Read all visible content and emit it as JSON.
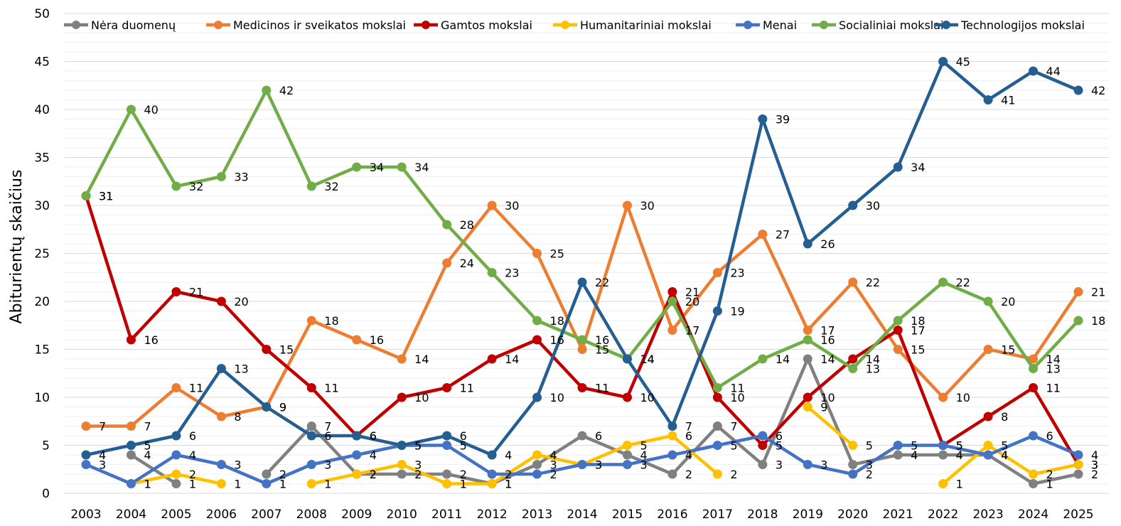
{
  "chart_data": {
    "type": "line",
    "title": "",
    "xlabel": "",
    "ylabel": "Abiturientų skaičius",
    "ylim": [
      0,
      50
    ],
    "y_ticks": [
      0,
      5,
      10,
      15,
      20,
      25,
      30,
      35,
      40,
      45,
      50
    ],
    "grid": true,
    "legend_position": "top",
    "data_labels": true,
    "x": [
      "2003",
      "2004",
      "2005",
      "2006",
      "2007",
      "2008",
      "2009",
      "2010",
      "2011",
      "2012",
      "2013",
      "2014",
      "2015",
      "2016",
      "2017",
      "2018",
      "2019",
      "2020",
      "2021",
      "2022",
      "2023",
      "2024",
      "2025"
    ],
    "series": [
      {
        "name": "Nėra duomenų",
        "color": "#808080",
        "values": [
          null,
          4,
          1,
          null,
          2,
          7,
          2,
          2,
          2,
          1,
          3,
          6,
          4,
          2,
          7,
          3,
          14,
          3,
          4,
          4,
          4,
          1,
          2
        ]
      },
      {
        "name": "Medicinos ir sveikatos mokslai",
        "color": "#ED7D31",
        "values": [
          7,
          7,
          11,
          8,
          9,
          18,
          16,
          14,
          24,
          30,
          25,
          15,
          30,
          17,
          23,
          27,
          17,
          22,
          15,
          10,
          15,
          14,
          21
        ]
      },
      {
        "name": "Gamtos mokslai",
        "color": "#C00000",
        "values": [
          31,
          16,
          21,
          20,
          15,
          11,
          6,
          10,
          11,
          14,
          16,
          11,
          10,
          21,
          10,
          5,
          10,
          14,
          17,
          5,
          8,
          11,
          3
        ]
      },
      {
        "name": "Humanitariniai mokslai",
        "color": "#FFC000",
        "values": [
          null,
          1,
          2,
          1,
          null,
          1,
          2,
          3,
          1,
          1,
          4,
          3,
          5,
          6,
          2,
          null,
          9,
          5,
          null,
          1,
          5,
          2,
          3
        ]
      },
      {
        "name": "Menai",
        "color": "#4472C4",
        "values": [
          3,
          1,
          4,
          3,
          1,
          3,
          4,
          5,
          5,
          2,
          2,
          3,
          3,
          4,
          5,
          6,
          3,
          2,
          5,
          5,
          4,
          6,
          4
        ]
      },
      {
        "name": "Socialiniai mokslai",
        "color": "#70AD47",
        "values": [
          31,
          40,
          32,
          33,
          42,
          32,
          34,
          34,
          28,
          23,
          18,
          16,
          14,
          20,
          11,
          14,
          16,
          13,
          18,
          22,
          20,
          13,
          18
        ]
      },
      {
        "name": "Technologijos mokslai",
        "color": "#255E91",
        "values": [
          4,
          5,
          6,
          13,
          9,
          6,
          6,
          5,
          6,
          4,
          10,
          22,
          14,
          7,
          19,
          39,
          26,
          30,
          34,
          45,
          41,
          44,
          42
        ]
      }
    ]
  }
}
